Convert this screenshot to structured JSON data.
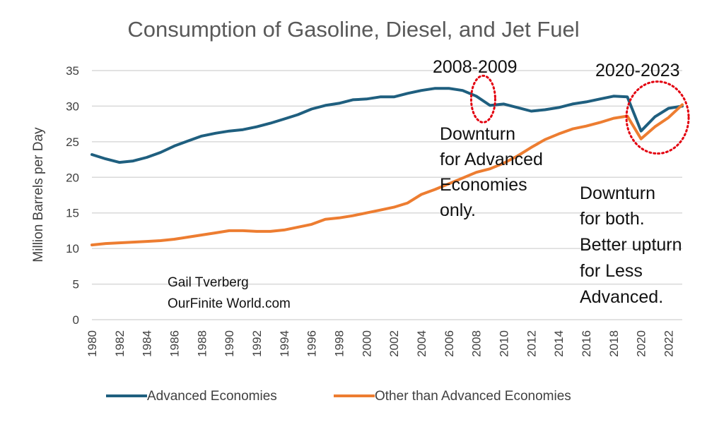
{
  "chart_data": {
    "type": "line",
    "title": "Consumption of Gasoline, Diesel, and Jet Fuel",
    "ylabel": "Million Barrels per Day",
    "xlabel": "",
    "ylim": [
      0,
      35
    ],
    "yticks": [
      0,
      5,
      10,
      15,
      20,
      25,
      30,
      35
    ],
    "xlim": [
      1980,
      2023
    ],
    "xtick_labels": [
      "1980",
      "1982",
      "1984",
      "1986",
      "1988",
      "1990",
      "1992",
      "1994",
      "1996",
      "1998",
      "2000",
      "2002",
      "2004",
      "2006",
      "2008",
      "2010",
      "2012",
      "2014",
      "2016",
      "2018",
      "2020",
      "2022"
    ],
    "grid": "horizontal",
    "legend_position": "bottom",
    "x": [
      1980,
      1981,
      1982,
      1983,
      1984,
      1985,
      1986,
      1987,
      1988,
      1989,
      1990,
      1991,
      1992,
      1993,
      1994,
      1995,
      1996,
      1997,
      1998,
      1999,
      2000,
      2001,
      2002,
      2003,
      2004,
      2005,
      2006,
      2007,
      2008,
      2009,
      2010,
      2011,
      2012,
      2013,
      2014,
      2015,
      2016,
      2017,
      2018,
      2019,
      2020,
      2021,
      2022,
      2023
    ],
    "series": [
      {
        "name": "Advanced Economies",
        "color": "#1f5f7f",
        "values": [
          23.2,
          22.6,
          22.1,
          22.3,
          22.8,
          23.5,
          24.4,
          25.1,
          25.8,
          26.2,
          26.5,
          26.7,
          27.1,
          27.6,
          28.2,
          28.8,
          29.6,
          30.1,
          30.4,
          30.9,
          31.0,
          31.3,
          31.3,
          31.8,
          32.2,
          32.5,
          32.5,
          32.2,
          31.4,
          30.1,
          30.3,
          29.8,
          29.3,
          29.5,
          29.8,
          30.3,
          30.6,
          31.0,
          31.4,
          31.3,
          26.5,
          28.5,
          29.7,
          30.0
        ]
      },
      {
        "name": "Other than Advanced Economies",
        "color": "#ed7d31",
        "values": [
          10.5,
          10.7,
          10.8,
          10.9,
          11.0,
          11.1,
          11.3,
          11.6,
          11.9,
          12.2,
          12.5,
          12.5,
          12.4,
          12.4,
          12.6,
          13.0,
          13.4,
          14.1,
          14.3,
          14.6,
          15.0,
          15.4,
          15.8,
          16.4,
          17.6,
          18.3,
          19.1,
          19.9,
          20.7,
          21.2,
          22.0,
          23.0,
          24.2,
          25.3,
          26.1,
          26.8,
          27.2,
          27.7,
          28.3,
          28.6,
          25.4,
          27.1,
          28.4,
          30.2
        ]
      }
    ],
    "annotations": {
      "period_2008": "2008-2009",
      "period_2020": "2020-2023",
      "note_advanced_lines": [
        "Downturn",
        "for Advanced",
        "Economies",
        "only."
      ],
      "note_both_lines": [
        "Downturn",
        "for both.",
        "Better upturn",
        "for Less",
        "Advanced."
      ],
      "credit_lines": [
        "Gail Tverberg",
        "OurFinite World.com"
      ],
      "circle_color": "#e3000f"
    }
  }
}
